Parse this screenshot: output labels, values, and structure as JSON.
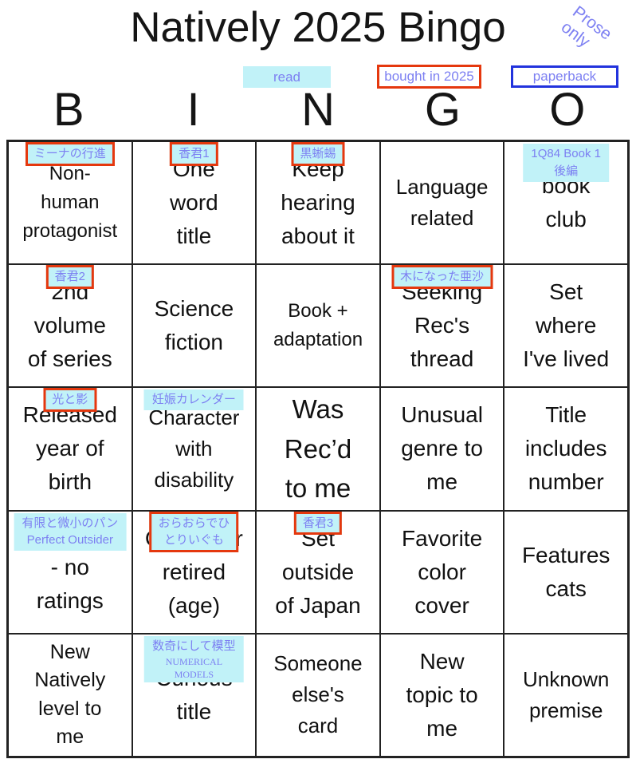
{
  "title": "Natively 2025 Bingo",
  "corner_note": "Prose only",
  "colors": {
    "highlight_cyan": "#c1f2f8",
    "note_purple": "#7d80f2",
    "box_red": "#e5380e",
    "box_blue": "#2233dd",
    "text_black": "#111111",
    "grid_line": "#222222"
  },
  "legend": [
    {
      "label": "read",
      "style": "cyan-highlight"
    },
    {
      "label": "bought in 2025",
      "style": "red-box"
    },
    {
      "label": "paperback",
      "style": "blue-box"
    }
  ],
  "bingo_letters": [
    "B",
    "I",
    "N",
    "G",
    "O"
  ],
  "cells": [
    {
      "text": "Non-\nhuman\nprotagonist",
      "label": {
        "lines": [
          "ミーナの行進"
        ],
        "read": true,
        "bought_in_2025": true
      }
    },
    {
      "text": "One\nword\ntitle",
      "label": {
        "lines": [
          "香君1"
        ],
        "read": true,
        "bought_in_2025": true
      }
    },
    {
      "text": "Keep\nhearing\nabout it",
      "label": {
        "lines": [
          "黒蜥蜴"
        ],
        "read": true,
        "bought_in_2025": true
      }
    },
    {
      "text": "Language\nrelated"
    },
    {
      "text": "book\nclub",
      "label": {
        "lines": [
          "1Q84 Book 1",
          "後編"
        ],
        "read": true,
        "bought_in_2025": false
      }
    },
    {
      "text": "2nd\nvolume\nof series",
      "label": {
        "lines": [
          "香君2"
        ],
        "read": true,
        "bought_in_2025": true
      }
    },
    {
      "text": "Science\nfiction"
    },
    {
      "text": "Book +\nadaptation"
    },
    {
      "text": "Seeking\nRec's\nthread",
      "label": {
        "lines": [
          "木になった亜沙"
        ],
        "read": true,
        "bought_in_2025": true
      }
    },
    {
      "text": "Set\nwhere\nI've lived"
    },
    {
      "text": "Released\nyear of\nbirth",
      "label": {
        "lines": [
          "光と影"
        ],
        "read": true,
        "bought_in_2025": true
      }
    },
    {
      "text": "Character\nwith\ndisability",
      "label": {
        "lines": [
          "妊娠カレンダー"
        ],
        "read": true,
        "bought_in_2025": false
      }
    },
    {
      "text": "Was\nRec’d\nto me"
    },
    {
      "text": "Unusual\ngenre to\nme"
    },
    {
      "text": "Title\nincludes\nnumber"
    },
    {
      "text": "- no\nratings",
      "label": {
        "lines": [
          "有限と微小のパン",
          "Perfect Outsider"
        ],
        "read": true,
        "bought_in_2025": false
      }
    },
    {
      "text": "Character\nretired\n(age)",
      "label": {
        "lines": [
          "おらおらでひ",
          "とりいぐも"
        ],
        "read": true,
        "bought_in_2025": true
      }
    },
    {
      "text": "Set\noutside\nof Japan",
      "label": {
        "lines": [
          "香君3"
        ],
        "read": true,
        "bought_in_2025": true
      }
    },
    {
      "text": "Favorite\ncolor\ncover"
    },
    {
      "text": "Features\ncats"
    },
    {
      "text": "New\nNatively\nlevel to\nme"
    },
    {
      "text": "Curious\ntitle",
      "label": {
        "lines": [
          "数奇にして模型",
          "NUMERICAL",
          "MODELS"
        ],
        "read": true,
        "bought_in_2025": false
      }
    },
    {
      "text": "Someone\nelse's\ncard"
    },
    {
      "text": "New\ntopic to\nme"
    },
    {
      "text": "Unknown\npremise"
    }
  ]
}
